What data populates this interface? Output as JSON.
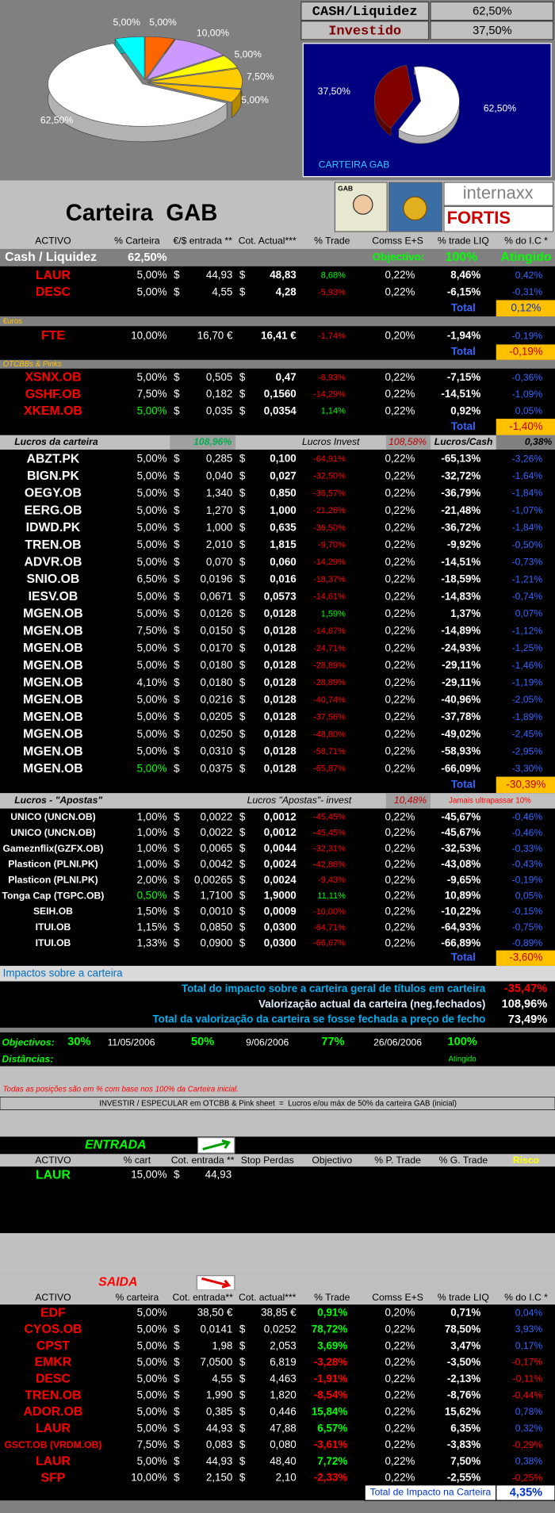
{
  "summary": {
    "rows": [
      {
        "label": "CASH/Liquidez",
        "value": "62,50%"
      },
      {
        "label": "Investido",
        "value": "37,50%"
      }
    ]
  },
  "pie_main": {
    "slices": [
      {
        "label": "5,00%",
        "value": 5,
        "color": "#00ffff"
      },
      {
        "label": "5,00%",
        "value": 5,
        "color": "#ff6600"
      },
      {
        "label": "10,00%",
        "value": 10,
        "color": "#cc99ff"
      },
      {
        "label": "5,00%",
        "value": 5,
        "color": "#ffff00"
      },
      {
        "label": "7,50%",
        "value": 7.5,
        "color": "#ffcc00"
      },
      {
        "label": "5,00%",
        "value": 5,
        "color": "#ffc000"
      },
      {
        "label": "62,50%",
        "value": 62.5,
        "color": "#ffffff"
      }
    ]
  },
  "pie_gab": {
    "title": "CARTEIRA GAB",
    "slices": [
      {
        "label": "62,50%",
        "value": 62.5,
        "color": "#ffffff"
      },
      {
        "label": "37,50%",
        "value": 37.5,
        "color": "#800000"
      }
    ]
  },
  "banner": {
    "title": "Carteira  GAB",
    "logos": [
      "GAB",
      "internaxx",
      "FORTIS"
    ]
  },
  "table": {
    "headers": [
      "ACTIVO",
      "% Carteira",
      "€/$ entrada **",
      "Cot. Actual***",
      "% Trade",
      "Comss E+S",
      "% trade LIQ",
      "% do I.C *"
    ],
    "cash": {
      "label": "Cash / Liquidez",
      "value": "62,50%",
      "objective_label": "Objectivo:",
      "objective": "100%",
      "status": "Atingido"
    },
    "groups": [
      {
        "name_color": "#ff0000",
        "rows": [
          {
            "cells": [
              "LAUR",
              "5,00%",
              "$",
              "44,93",
              "$",
              "48,83",
              "8,68%",
              "0,22%",
              "8,46%",
              "0,42%"
            ]
          },
          {
            "cells": [
              "DESC",
              "5,00%",
              "$",
              "4,55",
              "$",
              "4,28",
              "-5,93%",
              "0,22%",
              "-6,15%",
              "-0,31%"
            ]
          }
        ],
        "total": {
          "label": "Total",
          "value": "0,12%"
        }
      },
      {
        "name_color": "#ff0000",
        "divider": {
          "label": "€uros"
        },
        "rows": [
          {
            "cells": [
              "FTE",
              "10,00%",
              null,
              "16,70 €",
              null,
              "16,41 €",
              "-1,74%",
              "0,20%",
              "-1,94%",
              "-0,19%"
            ]
          }
        ],
        "total": {
          "label": "Total",
          "value": "-0,19%"
        }
      },
      {
        "name_color": "#ff0000",
        "divider": {
          "label": "OTCBBs & Pinks"
        },
        "rows": [
          {
            "cells": [
              "XSNX.OB",
              "5,00%",
              "$",
              "0,505",
              "$",
              "0,47",
              "-6,93%",
              "0,22%",
              "-7,15%",
              "-0,36%"
            ]
          },
          {
            "cells": [
              "GSHF.OB",
              "7,50%",
              "$",
              "0,182",
              "$",
              "0,1560",
              "-14,29%",
              "0,22%",
              "-14,51%",
              "-1,09%"
            ]
          },
          {
            "cells": [
              "XKEM.OB",
              "5,00%",
              "$",
              "0,035",
              "$",
              "0,0354",
              "1,14%",
              "0,22%",
              "0,92%",
              "0,05%"
            ],
            "pct_color": "#00ff00"
          }
        ],
        "total": {
          "label": "Total",
          "value": "-1,40%"
        }
      },
      {
        "name_color": "#ffffff",
        "divider": {
          "label": "Lucros da carteira",
          "value": "108,96%",
          "label2": "Lucros Invest",
          "value2": "108,58%",
          "label3": "Lucros/Cash",
          "value3": "0,38%"
        },
        "rows": [
          {
            "cells": [
              "ABZT.PK",
              "5,00%",
              "$",
              "0,285",
              "$",
              "0,100",
              "-64,91%",
              "0,22%",
              "-65,13%",
              "-3,26%"
            ]
          },
          {
            "cells": [
              "BIGN.PK",
              "5,00%",
              "$",
              "0,040",
              "$",
              "0,027",
              "-32,50%",
              "0,22%",
              "-32,72%",
              "-1,64%"
            ]
          },
          {
            "cells": [
              "OEGY.OB",
              "5,00%",
              "$",
              "1,340",
              "$",
              "0,850",
              "-36,57%",
              "0,22%",
              "-36,79%",
              "-1,84%"
            ]
          },
          {
            "cells": [
              "EERG.OB",
              "5,00%",
              "$",
              "1,270",
              "$",
              "1,000",
              "-21,26%",
              "0,22%",
              "-21,48%",
              "-1,07%"
            ]
          },
          {
            "cells": [
              "IDWD.PK",
              "5,00%",
              "$",
              "1,000",
              "$",
              "0,635",
              "-36,50%",
              "0,22%",
              "-36,72%",
              "-1,84%"
            ]
          },
          {
            "cells": [
              "TREN.OB",
              "5,00%",
              "$",
              "2,010",
              "$",
              "1,815",
              "-9,70%",
              "0,22%",
              "-9,92%",
              "-0,50%"
            ]
          },
          {
            "cells": [
              "ADVR.OB",
              "5,00%",
              "$",
              "0,070",
              "$",
              "0,060",
              "-14,29%",
              "0,22%",
              "-14,51%",
              "-0,73%"
            ]
          },
          {
            "cells": [
              "SNIO.OB",
              "6,50%",
              "$",
              "0,0196",
              "$",
              "0,016",
              "-18,37%",
              "0,22%",
              "-18,59%",
              "-1,21%"
            ]
          },
          {
            "cells": [
              "IESV.OB",
              "5,00%",
              "$",
              "0,0671",
              "$",
              "0,0573",
              "-14,61%",
              "0,22%",
              "-14,83%",
              "-0,74%"
            ]
          },
          {
            "cells": [
              "MGEN.OB",
              "5,00%",
              "$",
              "0,0126",
              "$",
              "0,0128",
              "1,59%",
              "0,22%",
              "1,37%",
              "0,07%"
            ]
          },
          {
            "cells": [
              "MGEN.OB",
              "7,50%",
              "$",
              "0,0150",
              "$",
              "0,0128",
              "-14,67%",
              "0,22%",
              "-14,89%",
              "-1,12%"
            ]
          },
          {
            "cells": [
              "MGEN.OB",
              "5,00%",
              "$",
              "0,0170",
              "$",
              "0,0128",
              "-24,71%",
              "0,22%",
              "-24,93%",
              "-1,25%"
            ]
          },
          {
            "cells": [
              "MGEN.OB",
              "5,00%",
              "$",
              "0,0180",
              "$",
              "0,0128",
              "-28,89%",
              "0,22%",
              "-29,11%",
              "-1,46%"
            ]
          },
          {
            "cells": [
              "MGEN.OB",
              "4,10%",
              "$",
              "0,0180",
              "$",
              "0,0128",
              "-28,89%",
              "0,22%",
              "-29,11%",
              "-1,19%"
            ]
          },
          {
            "cells": [
              "MGEN.OB",
              "5,00%",
              "$",
              "0,0216",
              "$",
              "0,0128",
              "-40,74%",
              "0,22%",
              "-40,96%",
              "-2,05%"
            ]
          },
          {
            "cells": [
              "MGEN.OB",
              "5,00%",
              "$",
              "0,0205",
              "$",
              "0,0128",
              "-37,56%",
              "0,22%",
              "-37,78%",
              "-1,89%"
            ]
          },
          {
            "cells": [
              "MGEN.OB",
              "5,00%",
              "$",
              "0,0250",
              "$",
              "0,0128",
              "-48,80%",
              "0,22%",
              "-49,02%",
              "-2,45%"
            ]
          },
          {
            "cells": [
              "MGEN.OB",
              "5,00%",
              "$",
              "0,0310",
              "$",
              "0,0128",
              "-58,71%",
              "0,22%",
              "-58,93%",
              "-2,95%"
            ]
          },
          {
            "cells": [
              "MGEN.OB",
              "5,00%",
              "$",
              "0,0375",
              "$",
              "0,0128",
              "-65,87%",
              "0,22%",
              "-66,09%",
              "-3,30%"
            ],
            "pct_color": "#00ff00"
          }
        ],
        "total": {
          "label": "Total",
          "value": "-30,39%"
        }
      },
      {
        "name_color": "#ffffff",
        "small_names": true,
        "divider": {
          "label": "Lucros - \"Apostas\"",
          "label2": "Lucros \"Apostas\"- invest",
          "value2": "10,48%",
          "note": "Jamais ultrapassar 10%"
        },
        "rows": [
          {
            "cells": [
              "UNICO (UNCN.OB)",
              "1,00%",
              "$",
              "0,0022",
              "$",
              "0,0012",
              "-45,45%",
              "0,22%",
              "-45,67%",
              "-0,46%"
            ]
          },
          {
            "cells": [
              "UNICO (UNCN.OB)",
              "1,00%",
              "$",
              "0,0022",
              "$",
              "0,0012",
              "-45,45%",
              "0,22%",
              "-45,67%",
              "-0,46%"
            ]
          },
          {
            "cells": [
              "Gameznflix(GZFX.OB)",
              "1,00%",
              "$",
              "0,0065",
              "$",
              "0,0044",
              "-32,31%",
              "0,22%",
              "-32,53%",
              "-0,33%"
            ]
          },
          {
            "cells": [
              "Plasticon (PLNI.PK)",
              "1,00%",
              "$",
              "0,0042",
              "$",
              "0,0024",
              "-42,86%",
              "0,22%",
              "-43,08%",
              "-0,43%"
            ]
          },
          {
            "cells": [
              "Plasticon (PLNI.PK)",
              "2,00%",
              "$",
              "0,00265",
              "$",
              "0,0024",
              "-9,43%",
              "0,22%",
              "-9,65%",
              "-0,19%"
            ]
          },
          {
            "cells": [
              "Tonga Cap (TGPC.OB)",
              "0,50%",
              "$",
              "1,7100",
              "$",
              "1,9000",
              "11,11%",
              "0,22%",
              "10,89%",
              "0,05%"
            ],
            "pct_color": "#00ff00"
          },
          {
            "cells": [
              "SEIH.OB",
              "1,50%",
              "$",
              "0,0010",
              "$",
              "0,0009",
              "-10,00%",
              "0,22%",
              "-10,22%",
              "-0,15%"
            ]
          },
          {
            "cells": [
              "ITUI.OB",
              "1,15%",
              "$",
              "0,0850",
              "$",
              "0,0300",
              "-64,71%",
              "0,22%",
              "-64,93%",
              "-0,75%"
            ]
          },
          {
            "cells": [
              "ITUI.OB",
              "1,33%",
              "$",
              "0,0900",
              "$",
              "0,0300",
              "-66,67%",
              "0,22%",
              "-66,89%",
              "-0,89%"
            ]
          }
        ],
        "total": {
          "label": "Total",
          "value": "-3,60%"
        }
      }
    ]
  },
  "impacts": {
    "title": "Impactos sobre a carteira",
    "lines": [
      {
        "label": "Total do impacto sobre a carteira geral de títulos em carteira",
        "value": "-35,47%",
        "color": "#00b0f0",
        "value_color": "#ff0000"
      },
      {
        "label": "Valorização actual da carteira (neg.fechados)",
        "value": "108,96%",
        "color": "#e0f0ff",
        "value_color": "#ffffff"
      },
      {
        "label": "Total da valorização da carteira se fosse fechada a preço de fecho",
        "value": "73,49%",
        "color": "#00b0f0",
        "value_color": "#ffffff"
      }
    ]
  },
  "objectives": {
    "label": "Objectivos:",
    "items": [
      {
        "pct": "30%",
        "date": "11/05/2006"
      },
      {
        "pct": "50%",
        "date": "9/06/2006"
      },
      {
        "pct": "77%",
        "date": "26/06/2006"
      },
      {
        "pct": "100%",
        "status": "Atingido"
      }
    ],
    "distances_label": "Distâncias:"
  },
  "notes": [
    "Todas as posições são em % com base nos 100% da Carteira inicial.",
    "INVESTIR / ESPECULAR em OTCBB & Pink sheet  =  Lucros e/ou máx de 50% da carteira GAB (inicial)"
  ],
  "entrada": {
    "title": "ENTRADA",
    "headers": [
      "ACTIVO",
      "% cart",
      "Cot. entrada **",
      "Stop Perdas",
      "Objectivo",
      "% P. Trade",
      "% G. Trade",
      "Risco"
    ],
    "rows": [
      {
        "cells": [
          "LAUR",
          "15,00%",
          "$",
          "44,93"
        ]
      }
    ]
  },
  "saida": {
    "title": "SAIDA",
    "headers": [
      "ACTIVO",
      "% carteira",
      "Cot. entrada**",
      "Cot. actual***",
      "% Trade",
      "Comss E+S",
      "% trade LIQ",
      "% do I.C *"
    ],
    "rows": [
      {
        "cells": [
          "EDF",
          "5,00%",
          null,
          "38,50 €",
          null,
          "38,85 €",
          "0,91%",
          "0,20%",
          "0,71%",
          "0,04%"
        ]
      },
      {
        "cells": [
          "CYOS.OB",
          "5,00%",
          "$",
          "0,0141",
          "$",
          "0,0252",
          "78,72%",
          "0,22%",
          "78,50%",
          "3,93%"
        ]
      },
      {
        "cells": [
          "CPST",
          "5,00%",
          "$",
          "1,98",
          "$",
          "2,053",
          "3,69%",
          "0,22%",
          "3,47%",
          "0,17%"
        ]
      },
      {
        "cells": [
          "EMKR",
          "5,00%",
          "$",
          "7,0500",
          "$",
          "6,819",
          "-3,28%",
          "0,22%",
          "-3,50%",
          "-0,17%"
        ]
      },
      {
        "cells": [
          "DESC",
          "5,00%",
          "$",
          "4,55",
          "$",
          "4,463",
          "-1,91%",
          "0,22%",
          "-2,13%",
          "-0,11%"
        ]
      },
      {
        "cells": [
          "TREN.OB",
          "5,00%",
          "$",
          "1,990",
          "$",
          "1,820",
          "-8,54%",
          "0,22%",
          "-8,76%",
          "-0,44%"
        ]
      },
      {
        "cells": [
          "ADOR.OB",
          "5,00%",
          "$",
          "0,385",
          "$",
          "0,446",
          "15,84%",
          "0,22%",
          "15,62%",
          "0,78%"
        ]
      },
      {
        "cells": [
          "LAUR",
          "5,00%",
          "$",
          "44,93",
          "$",
          "47,88",
          "6,57%",
          "0,22%",
          "6,35%",
          "0,32%"
        ]
      },
      {
        "cells": [
          "GSCT.OB (VRDM.OB)",
          "7,50%",
          "$",
          "0,083",
          "$",
          "0,080",
          "-3,61%",
          "0,22%",
          "-3,83%",
          "-0,29%"
        ]
      },
      {
        "cells": [
          "LAUR",
          "5,00%",
          "$",
          "44,93",
          "$",
          "48,40",
          "7,72%",
          "0,22%",
          "7,50%",
          "0,38%"
        ]
      },
      {
        "cells": [
          "SFP",
          "10,00%",
          "$",
          "2,150",
          "$",
          "2,10",
          "-2,33%",
          "0,22%",
          "-2,55%",
          "-0,25%"
        ]
      }
    ],
    "total": {
      "label": "Total de Impacto na Carteira",
      "value": "4,35%"
    }
  }
}
